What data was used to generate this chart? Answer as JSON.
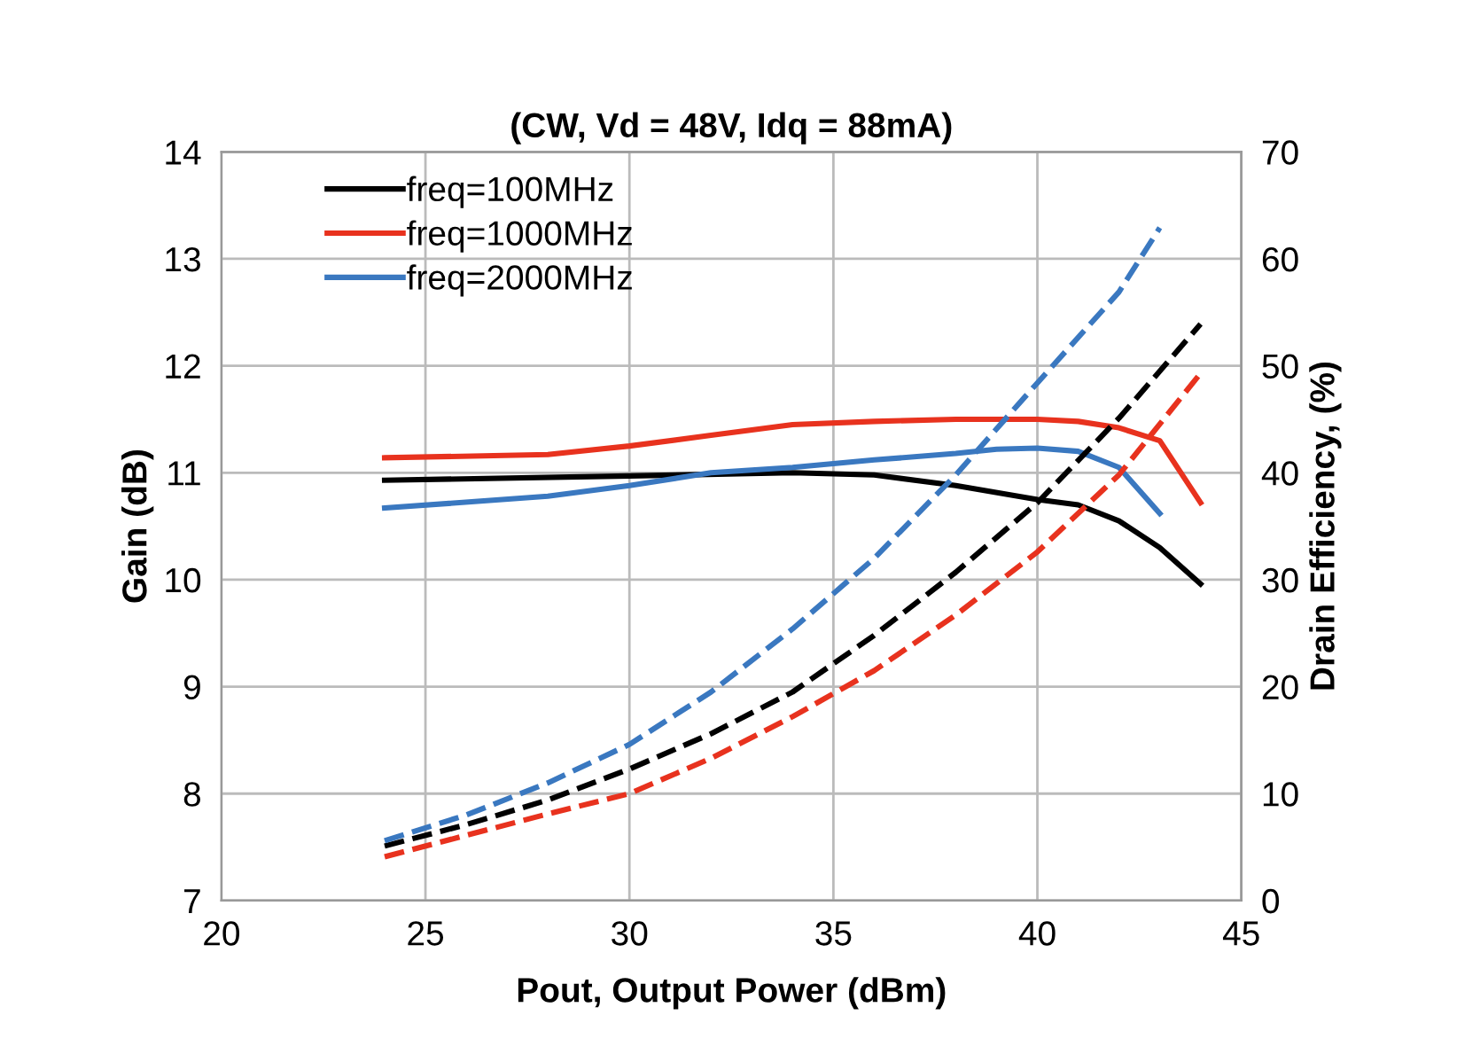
{
  "chart_data": {
    "type": "line",
    "title": "(CW, Vd = 48V, Idq = 88mA)",
    "xlabel": "Pout, Output Power (dBm)",
    "ylabel": "Gain (dB)",
    "y2label": "Drain Efficiency, (%)",
    "xlim": [
      20,
      45
    ],
    "xticks": [
      20,
      25,
      30,
      35,
      40,
      45
    ],
    "ylim": [
      7,
      14
    ],
    "yticks": [
      7,
      8,
      9,
      10,
      11,
      12,
      13,
      14
    ],
    "y2lim": [
      0,
      70
    ],
    "y2ticks": [
      0,
      10,
      20,
      30,
      40,
      50,
      60,
      70
    ],
    "grid": true,
    "legend": "top left",
    "marker": "none",
    "series": [
      {
        "name": "freq=100MHz",
        "color": "#000000",
        "line_style": "solid",
        "x": [
          24,
          30,
          34,
          36,
          38,
          40,
          41,
          42,
          43,
          44
        ],
        "values": [
          10.93,
          10.97,
          11.0,
          10.98,
          10.88,
          10.75,
          10.7,
          10.55,
          10.3,
          9.96
        ]
      },
      {
        "name": "freq=1000MHz",
        "color": "#e8321e",
        "line_style": "solid",
        "x": [
          24,
          28,
          30,
          32,
          34,
          36,
          38,
          40,
          41,
          42,
          43,
          44
        ],
        "values": [
          11.14,
          11.17,
          11.25,
          11.35,
          11.45,
          11.48,
          11.5,
          11.5,
          11.48,
          11.42,
          11.3,
          10.72
        ]
      },
      {
        "name": "freq=2000MHz",
        "color": "#3a78c0",
        "line_style": "solid",
        "x": [
          24,
          28,
          30,
          32,
          34,
          36,
          38,
          39,
          40,
          41,
          42,
          43
        ],
        "values": [
          10.67,
          10.78,
          10.88,
          11.0,
          11.05,
          11.12,
          11.18,
          11.22,
          11.23,
          11.2,
          11.05,
          10.62
        ]
      },
      {
        "color": "#000000",
        "line_style": "dashed",
        "axis": "y2",
        "x": [
          24,
          26,
          28,
          30,
          32,
          34,
          36,
          38,
          40,
          42,
          44
        ],
        "values": [
          5.1,
          7.1,
          9.4,
          12.3,
          15.6,
          19.5,
          24.8,
          30.7,
          37.2,
          45.1,
          53.9
        ]
      },
      {
        "color": "#e8321e",
        "line_style": "dashed",
        "axis": "y2",
        "x": [
          24,
          26,
          28,
          30,
          32,
          34,
          36,
          38,
          40,
          42,
          44
        ],
        "values": [
          4.1,
          6.1,
          8.1,
          10,
          13.3,
          17.2,
          21.5,
          26.7,
          32.6,
          39.8,
          49.3
        ]
      },
      {
        "color": "#3a78c0",
        "line_style": "dashed",
        "axis": "y2",
        "x": [
          24,
          26,
          28,
          30,
          32,
          34,
          36,
          38,
          40,
          42,
          43
        ],
        "values": [
          5.6,
          8,
          11,
          14.6,
          19.5,
          25.4,
          32,
          39.8,
          48.4,
          56.9,
          62.9
        ]
      }
    ]
  }
}
